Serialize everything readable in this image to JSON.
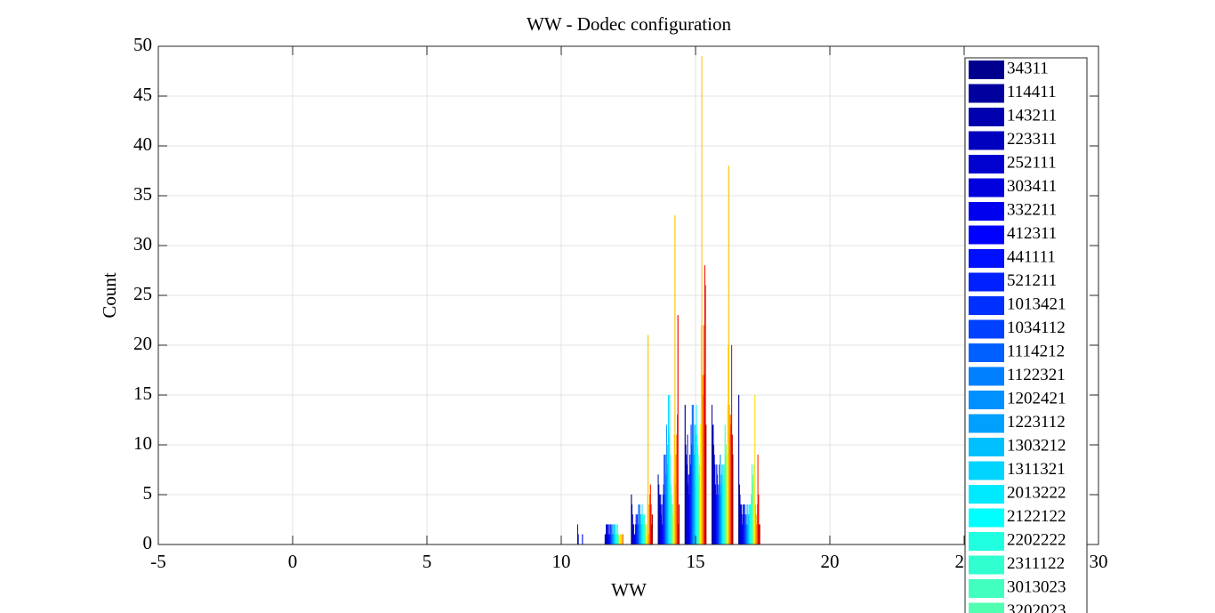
{
  "chart_data": {
    "type": "bar",
    "title": "WW - Dodec configuration",
    "xlabel": "WW",
    "ylabel": "Count",
    "categories": [
      0,
      1,
      2,
      3,
      4,
      5,
      6,
      7,
      8,
      9,
      10,
      11,
      12,
      13,
      14,
      15,
      16,
      17,
      18,
      19,
      20,
      21,
      22,
      23,
      24,
      25
    ],
    "xlim": [
      -5,
      30
    ],
    "xticks": [
      -5,
      0,
      5,
      10,
      15,
      20,
      25,
      30
    ],
    "ylim": [
      0,
      50
    ],
    "yticks": [
      0,
      5,
      10,
      15,
      20,
      25,
      30,
      35,
      40,
      45,
      50
    ],
    "grid": true,
    "legend": "top-right",
    "series": [
      {
        "name": "34311",
        "color": "#00008f",
        "values": [
          0,
          0,
          0,
          0,
          0,
          0,
          0,
          0,
          0,
          0,
          0,
          2,
          0,
          5,
          7,
          14,
          14,
          15,
          0,
          0,
          0,
          0,
          0,
          0,
          0,
          0
        ]
      },
      {
        "name": "114411",
        "color": "#00009f",
        "values": [
          0,
          0,
          0,
          0,
          0,
          0,
          0,
          0,
          0,
          0,
          0,
          1,
          1,
          4,
          6,
          10,
          12,
          6,
          0,
          0,
          0,
          0,
          0,
          0,
          0,
          0
        ]
      },
      {
        "name": "143211",
        "color": "#0000af",
        "values": [
          0,
          0,
          0,
          0,
          0,
          0,
          0,
          0,
          0,
          0,
          0,
          0,
          1,
          3,
          5,
          9,
          12,
          5,
          0,
          0,
          0,
          0,
          0,
          0,
          0,
          0
        ]
      },
      {
        "name": "223311",
        "color": "#0000bf",
        "values": [
          0,
          0,
          0,
          0,
          0,
          0,
          0,
          0,
          0,
          0,
          0,
          0,
          2,
          2,
          4,
          8,
          10,
          4,
          0,
          0,
          0,
          0,
          0,
          0,
          0,
          0
        ]
      },
      {
        "name": "252111",
        "color": "#0000cf",
        "values": [
          0,
          0,
          0,
          0,
          0,
          0,
          0,
          0,
          0,
          0,
          0,
          0,
          2,
          2,
          5,
          11,
          9,
          4,
          0,
          0,
          0,
          0,
          0,
          0,
          0,
          0
        ]
      },
      {
        "name": "303411",
        "color": "#0000df",
        "values": [
          0,
          0,
          0,
          0,
          0,
          0,
          0,
          0,
          0,
          0,
          0,
          0,
          1,
          1,
          3,
          6,
          8,
          3,
          0,
          0,
          0,
          0,
          0,
          0,
          0,
          0
        ]
      },
      {
        "name": "332211",
        "color": "#0000ef",
        "values": [
          0,
          0,
          0,
          0,
          0,
          0,
          0,
          0,
          0,
          0,
          0,
          0,
          2,
          1,
          4,
          7,
          6,
          2,
          0,
          0,
          0,
          0,
          0,
          0,
          0,
          0
        ]
      },
      {
        "name": "412311",
        "color": "#0000ff",
        "values": [
          0,
          0,
          0,
          0,
          0,
          0,
          0,
          0,
          0,
          0,
          0,
          0,
          1,
          2,
          2,
          5,
          5,
          4,
          0,
          0,
          0,
          0,
          0,
          0,
          0,
          0
        ]
      },
      {
        "name": "441111",
        "color": "#0010ff",
        "values": [
          0,
          0,
          0,
          0,
          0,
          0,
          0,
          0,
          0,
          0,
          0,
          1,
          2,
          3,
          5,
          9,
          8,
          4,
          0,
          0,
          0,
          0,
          0,
          0,
          0,
          0
        ]
      },
      {
        "name": "521211",
        "color": "#0020ff",
        "values": [
          0,
          0,
          0,
          0,
          0,
          0,
          0,
          0,
          0,
          0,
          0,
          0,
          1,
          2,
          6,
          8,
          7,
          3,
          0,
          0,
          0,
          0,
          0,
          0,
          0,
          0
        ]
      },
      {
        "name": "1013421",
        "color": "#0030ff",
        "values": [
          0,
          0,
          0,
          0,
          0,
          0,
          0,
          0,
          0,
          0,
          0,
          0,
          2,
          3,
          9,
          12,
          6,
          4,
          0,
          0,
          0,
          0,
          0,
          0,
          0,
          0
        ]
      },
      {
        "name": "1034112",
        "color": "#0040ff",
        "values": [
          0,
          0,
          0,
          0,
          0,
          0,
          0,
          0,
          0,
          0,
          0,
          0,
          1,
          2,
          5,
          10,
          5,
          2,
          0,
          0,
          0,
          0,
          0,
          0,
          0,
          0
        ]
      },
      {
        "name": "1114212",
        "color": "#0060ff",
        "values": [
          0,
          0,
          0,
          0,
          0,
          0,
          0,
          0,
          0,
          0,
          0,
          0,
          2,
          4,
          9,
          14,
          8,
          3,
          0,
          0,
          0,
          0,
          0,
          0,
          0,
          0
        ]
      },
      {
        "name": "1122321",
        "color": "#0080ff",
        "values": [
          0,
          0,
          0,
          0,
          0,
          0,
          0,
          0,
          0,
          0,
          0,
          0,
          1,
          3,
          7,
          10,
          6,
          2,
          0,
          0,
          0,
          0,
          0,
          0,
          0,
          0
        ]
      },
      {
        "name": "1202421",
        "color": "#0090ff",
        "values": [
          0,
          0,
          0,
          0,
          0,
          0,
          0,
          0,
          0,
          0,
          0,
          0,
          2,
          4,
          12,
          14,
          9,
          4,
          0,
          0,
          0,
          0,
          0,
          0,
          0,
          0
        ]
      },
      {
        "name": "1223112",
        "color": "#00a0ff",
        "values": [
          0,
          0,
          0,
          0,
          0,
          0,
          0,
          0,
          0,
          0,
          0,
          0,
          1,
          2,
          8,
          9,
          5,
          2,
          0,
          0,
          0,
          0,
          0,
          0,
          0,
          0
        ]
      },
      {
        "name": "1303212",
        "color": "#00c0ff",
        "values": [
          0,
          0,
          0,
          0,
          0,
          0,
          0,
          0,
          0,
          0,
          0,
          0,
          2,
          3,
          10,
          12,
          7,
          3,
          0,
          0,
          0,
          0,
          0,
          0,
          0,
          0
        ]
      },
      {
        "name": "1311321",
        "color": "#00d4ff",
        "values": [
          0,
          0,
          0,
          0,
          0,
          0,
          0,
          0,
          0,
          0,
          0,
          0,
          1,
          2,
          15,
          11,
          8,
          4,
          0,
          0,
          0,
          0,
          0,
          0,
          0,
          0
        ]
      },
      {
        "name": "2013222",
        "color": "#00eaff",
        "values": [
          0,
          0,
          0,
          0,
          0,
          0,
          0,
          0,
          0,
          0,
          0,
          0,
          2,
          4,
          11,
          12,
          6,
          3,
          0,
          0,
          0,
          0,
          0,
          0,
          0,
          0
        ]
      },
      {
        "name": "2122122",
        "color": "#00ffff",
        "values": [
          0,
          0,
          0,
          0,
          0,
          0,
          0,
          0,
          0,
          0,
          0,
          0,
          1,
          3,
          15,
          14,
          8,
          4,
          0,
          0,
          0,
          0,
          0,
          0,
          0,
          0
        ]
      },
      {
        "name": "2202222",
        "color": "#20ffdf",
        "values": [
          0,
          0,
          0,
          0,
          0,
          0,
          0,
          0,
          0,
          0,
          0,
          0,
          2,
          3,
          9,
          11,
          7,
          4,
          0,
          0,
          0,
          0,
          0,
          0,
          0,
          0
        ]
      },
      {
        "name": "2311122",
        "color": "#30ffcf",
        "values": [
          0,
          0,
          0,
          0,
          0,
          0,
          0,
          0,
          0,
          0,
          0,
          0,
          1,
          2,
          6,
          10,
          8,
          5,
          0,
          0,
          0,
          0,
          0,
          0,
          0,
          0
        ]
      },
      {
        "name": "3013023",
        "color": "#40ffbf",
        "values": [
          0,
          0,
          0,
          0,
          0,
          0,
          0,
          0,
          0,
          0,
          0,
          0,
          2,
          3,
          5,
          9,
          12,
          8,
          0,
          0,
          0,
          0,
          0,
          0,
          0,
          0
        ]
      },
      {
        "name": "3202023",
        "color": "#50ffaf",
        "values": [
          0,
          0,
          0,
          0,
          0,
          0,
          0,
          0,
          0,
          0,
          0,
          0,
          1,
          2,
          3,
          7,
          9,
          6,
          0,
          0,
          0,
          0,
          0,
          0,
          0,
          0
        ]
      },
      {
        "color": "#80ff80",
        "values": [
          0,
          0,
          0,
          0,
          0,
          0,
          0,
          0,
          0,
          0,
          0,
          0,
          1,
          2,
          4,
          8,
          10,
          7,
          0,
          0,
          0,
          0,
          0,
          0,
          0,
          0
        ]
      },
      {
        "color": "#bfff40",
        "values": [
          0,
          0,
          0,
          0,
          0,
          0,
          0,
          0,
          0,
          0,
          0,
          0,
          0,
          1,
          3,
          6,
          9,
          8,
          0,
          0,
          0,
          0,
          0,
          0,
          0,
          0
        ]
      },
      {
        "color": "#ffff00",
        "values": [
          0,
          0,
          0,
          0,
          0,
          0,
          0,
          0,
          0,
          0,
          0,
          0,
          1,
          2,
          7,
          12,
          14,
          4,
          0,
          0,
          0,
          0,
          0,
          0,
          0,
          0
        ]
      },
      {
        "color": "#ffdf00",
        "values": [
          0,
          0,
          0,
          0,
          0,
          0,
          0,
          0,
          0,
          0,
          0,
          0,
          1,
          5,
          11,
          22,
          20,
          15,
          0,
          0,
          0,
          0,
          0,
          0,
          0,
          0
        ]
      },
      {
        "color": "#ffbf00",
        "values": [
          0,
          0,
          0,
          0,
          0,
          0,
          0,
          0,
          0,
          0,
          0,
          0,
          0,
          21,
          33,
          49,
          38,
          4,
          0,
          0,
          0,
          0,
          0,
          0,
          0,
          0
        ]
      },
      {
        "color": "#ff9f00",
        "values": [
          0,
          0,
          0,
          0,
          0,
          0,
          0,
          0,
          0,
          0,
          0,
          0,
          1,
          1,
          6,
          17,
          14,
          3,
          0,
          0,
          0,
          0,
          0,
          0,
          0,
          0
        ]
      },
      {
        "color": "#ff8000",
        "values": [
          0,
          0,
          0,
          0,
          0,
          0,
          0,
          0,
          0,
          0,
          0,
          0,
          0,
          4,
          9,
          15,
          11,
          2,
          0,
          0,
          0,
          0,
          0,
          0,
          0,
          0
        ]
      },
      {
        "color": "#ff6000",
        "values": [
          0,
          0,
          0,
          0,
          0,
          0,
          0,
          0,
          0,
          0,
          0,
          0,
          1,
          5,
          11,
          22,
          13,
          4,
          0,
          0,
          0,
          0,
          0,
          0,
          0,
          0
        ]
      },
      {
        "color": "#ff2000",
        "values": [
          0,
          0,
          0,
          0,
          0,
          0,
          0,
          0,
          0,
          0,
          0,
          0,
          0,
          6,
          13,
          17,
          12,
          9,
          0,
          0,
          0,
          0,
          0,
          0,
          0,
          0
        ]
      },
      {
        "color": "#ef0000",
        "values": [
          0,
          0,
          0,
          0,
          0,
          0,
          0,
          0,
          0,
          0,
          0,
          0,
          0,
          4,
          23,
          28,
          20,
          5,
          0,
          0,
          0,
          0,
          0,
          0,
          0,
          0
        ]
      },
      {
        "color": "#bf0000",
        "values": [
          0,
          0,
          0,
          0,
          0,
          0,
          0,
          0,
          0,
          0,
          0,
          0,
          0,
          2,
          2,
          26,
          11,
          2,
          0,
          0,
          0,
          0,
          0,
          0,
          0,
          0
        ]
      },
      {
        "color": "#9f0000",
        "values": [
          0,
          0,
          0,
          0,
          0,
          0,
          0,
          0,
          0,
          0,
          0,
          0,
          0,
          3,
          4,
          12,
          9,
          2,
          0,
          0,
          0,
          0,
          0,
          0,
          0,
          0
        ]
      }
    ]
  }
}
